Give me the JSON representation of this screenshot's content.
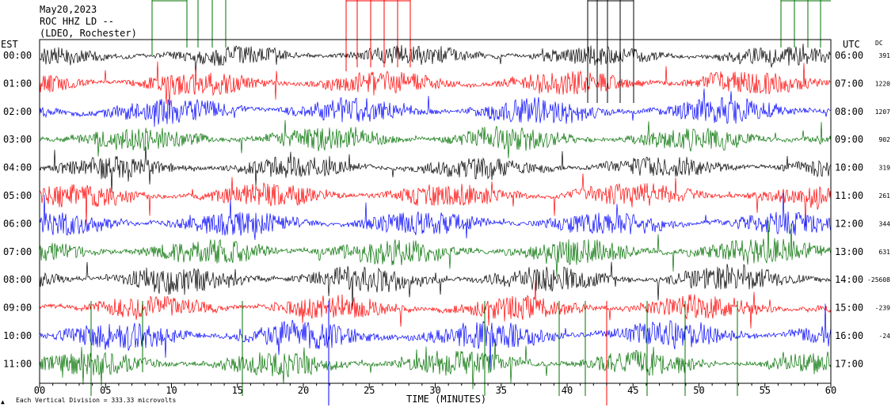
{
  "header": {
    "date": "May20,2023",
    "station": "ROC HHZ LD --",
    "network": "(LDEO, Rochester)"
  },
  "axes": {
    "left_title": "EST",
    "right_title": "UTC",
    "dc_title": "DC",
    "x_title": "TIME (MINUTES)",
    "scale_note": "Each Vertical Division = 333.33 microvolts"
  },
  "colors": {
    "trace_cycle": [
      "#000000",
      "#ff0000",
      "#0000ff",
      "#007000"
    ],
    "frame": "#000000"
  },
  "chart_data": {
    "type": "line",
    "title": "ROC HHZ LD --",
    "xlabel": "TIME (MINUTES)",
    "ylabel": "EST",
    "xlim": [
      0,
      60
    ],
    "x_ticks": [
      0,
      5,
      10,
      15,
      20,
      25,
      30,
      35,
      40,
      45,
      50,
      55,
      60
    ],
    "x_tick_labels": [
      "00",
      "05",
      "10",
      "15",
      "20",
      "25",
      "30",
      "35",
      "40",
      "45",
      "50",
      "55",
      "60"
    ],
    "series": [
      {
        "est": "00:00",
        "utc": "06:00",
        "dc": "391",
        "amp": 0.9
      },
      {
        "est": "01:00",
        "utc": "07:00",
        "dc": "1220",
        "amp": 1.1
      },
      {
        "est": "02:00",
        "utc": "08:00",
        "dc": "1207",
        "amp": 1.2
      },
      {
        "est": "03:00",
        "utc": "09:00",
        "dc": "902",
        "amp": 1.1
      },
      {
        "est": "04:00",
        "utc": "10:00",
        "dc": "319",
        "amp": 1.0
      },
      {
        "est": "05:00",
        "utc": "11:00",
        "dc": "261",
        "amp": 1.1
      },
      {
        "est": "06:00",
        "utc": "12:00",
        "dc": "344",
        "amp": 1.1
      },
      {
        "est": "07:00",
        "utc": "13:00",
        "dc": "631",
        "amp": 1.2
      },
      {
        "est": "08:00",
        "utc": "14:00",
        "dc": "-25608",
        "amp": 1.2
      },
      {
        "est": "09:00",
        "utc": "15:00",
        "dc": "-239",
        "amp": 1.1
      },
      {
        "est": "10:00",
        "utc": "16:00",
        "dc": "-24",
        "amp": 1.3
      },
      {
        "est": "11:00",
        "utc": "17:00",
        "dc": "",
        "amp": 1.1
      }
    ]
  }
}
